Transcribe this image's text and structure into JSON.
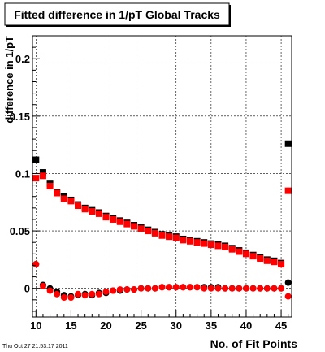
{
  "chart_data": {
    "type": "scatter",
    "title": "Fitted difference in 1/pT  Global Tracks",
    "xlabel": "No. of Fit Points",
    "ylabel": "difference in 1/pT",
    "timestamp": "Thu Oct 27 21:53:17 2011",
    "xlim": [
      9.5,
      46.5
    ],
    "ylim": [
      -0.025,
      0.22
    ],
    "grid": true,
    "x_ticks": [
      10,
      15,
      20,
      25,
      30,
      35,
      40,
      45
    ],
    "x_tick_labels": [
      "10",
      "15",
      "20",
      "25",
      "30",
      "35",
      "40",
      "45"
    ],
    "y_ticks": [
      0,
      0.05,
      0.1,
      0.15,
      0.2
    ],
    "y_tick_labels": [
      "0",
      "0.05",
      "0.1",
      "0.15",
      "0.2"
    ],
    "series": [
      {
        "marker": "square",
        "color": "#000000",
        "x": [
          10,
          11,
          12,
          13,
          14,
          15,
          16,
          17,
          18,
          19,
          20,
          21,
          22,
          23,
          24,
          25,
          26,
          27,
          28,
          29,
          30,
          31,
          32,
          33,
          34,
          35,
          36,
          37,
          38,
          39,
          40,
          41,
          42,
          43,
          44,
          45,
          46
        ],
        "y": [
          0.112,
          0.101,
          0.091,
          0.084,
          0.08,
          0.077,
          0.073,
          0.07,
          0.068,
          0.066,
          0.063,
          0.061,
          0.059,
          0.057,
          0.055,
          0.053,
          0.051,
          0.049,
          0.047,
          0.046,
          0.045,
          0.043,
          0.042,
          0.041,
          0.04,
          0.039,
          0.038,
          0.037,
          0.035,
          0.033,
          0.031,
          0.029,
          0.027,
          0.025,
          0.024,
          0.022,
          0.126
        ]
      },
      {
        "marker": "square",
        "color": "#ff0000",
        "x": [
          10,
          11,
          12,
          13,
          14,
          15,
          16,
          17,
          18,
          19,
          20,
          21,
          22,
          23,
          24,
          25,
          26,
          27,
          28,
          29,
          30,
          31,
          32,
          33,
          34,
          35,
          36,
          37,
          38,
          39,
          40,
          41,
          42,
          43,
          44,
          45,
          46
        ],
        "y": [
          0.096,
          0.098,
          0.089,
          0.083,
          0.078,
          0.076,
          0.072,
          0.069,
          0.067,
          0.065,
          0.062,
          0.06,
          0.058,
          0.056,
          0.054,
          0.052,
          0.05,
          0.048,
          0.046,
          0.045,
          0.044,
          0.042,
          0.041,
          0.04,
          0.039,
          0.038,
          0.037,
          0.036,
          0.034,
          0.032,
          0.03,
          0.028,
          0.026,
          0.024,
          0.023,
          0.021,
          0.085
        ]
      },
      {
        "marker": "circle",
        "color": "#000000",
        "x": [
          10,
          11,
          12,
          13,
          14,
          15,
          16,
          17,
          18,
          19,
          20,
          21,
          22,
          23,
          24,
          25,
          26,
          27,
          28,
          29,
          30,
          31,
          32,
          33,
          34,
          35,
          36,
          37,
          38,
          39,
          40,
          41,
          42,
          43,
          44,
          45,
          46
        ],
        "y": [
          0.021,
          0.003,
          0.0,
          -0.003,
          -0.006,
          -0.007,
          -0.006,
          -0.005,
          -0.006,
          -0.004,
          -0.004,
          -0.002,
          -0.002,
          -0.001,
          -0.001,
          0.0,
          0.0,
          0.0,
          0.001,
          0.001,
          0.001,
          0.001,
          0.001,
          0.001,
          0.001,
          0.001,
          0.001,
          0.0,
          0.0,
          0.0,
          0.0,
          0.0,
          0.0,
          0.0,
          0.0,
          0.0,
          0.005
        ]
      },
      {
        "marker": "circle",
        "color": "#ff0000",
        "x": [
          10,
          11,
          12,
          13,
          14,
          15,
          16,
          17,
          18,
          19,
          20,
          21,
          22,
          23,
          24,
          25,
          26,
          27,
          28,
          29,
          30,
          31,
          32,
          33,
          34,
          35,
          36,
          37,
          38,
          39,
          40,
          41,
          42,
          43,
          44,
          45,
          46
        ],
        "y": [
          0.021,
          0.002,
          -0.002,
          -0.005,
          -0.008,
          -0.008,
          -0.005,
          -0.006,
          -0.005,
          -0.005,
          -0.003,
          -0.002,
          -0.001,
          -0.001,
          -0.001,
          0.0,
          0.0,
          0.0,
          0.001,
          0.001,
          0.001,
          0.001,
          0.001,
          0.001,
          0.0,
          0.0,
          0.0,
          0.0,
          0.0,
          0.0,
          0.0,
          0.0,
          0.0,
          0.0,
          0.0,
          0.0,
          -0.007
        ]
      }
    ]
  }
}
